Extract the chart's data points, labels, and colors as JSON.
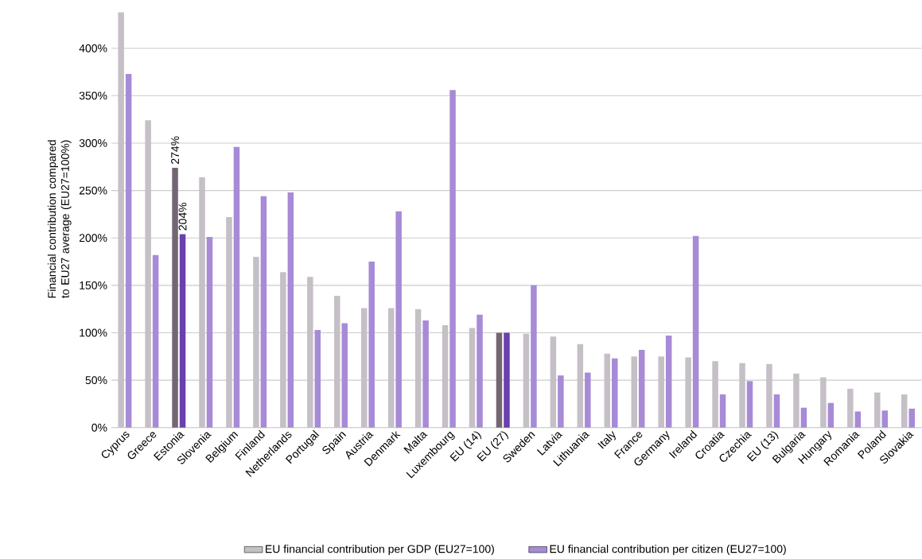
{
  "chart_data": {
    "type": "bar",
    "ylabel": "Financial contribution compared to EU27 average (EU27=100%)",
    "categories": [
      "Cyprus",
      "Greece",
      "Estonia",
      "Slovenia",
      "Belgium",
      "Finland",
      "Netherlands",
      "Portugal",
      "Spain",
      "Austria",
      "Denmark",
      "Malta",
      "Luxembourg",
      "EU (14)",
      "EU (27)",
      "Sweden",
      "Latvia",
      "Lithuania",
      "Italy",
      "France",
      "Germany",
      "Ireland",
      "Croatia",
      "Czechia",
      "EU (13)",
      "Bulgaria",
      "Hungary",
      "Romania",
      "Poland",
      "Slovakia"
    ],
    "series": [
      {
        "name": "EU financial contribution per GDP (EU27=100)",
        "color": "#c5bfc6",
        "colors": [
          "#c5bfc6",
          "#c5bfc6",
          "#736673",
          "#c5bfc6",
          "#c5bfc6",
          "#c5bfc6",
          "#c5bfc6",
          "#c5bfc6",
          "#c5bfc6",
          "#c5bfc6",
          "#c5bfc6",
          "#c5bfc6",
          "#c5bfc6",
          "#c5bfc6",
          "#736673",
          "#c5bfc6",
          "#c5bfc6",
          "#c5bfc6",
          "#c5bfc6",
          "#c5bfc6",
          "#c5bfc6",
          "#c5bfc6",
          "#c5bfc6",
          "#c5bfc6",
          "#c5bfc6",
          "#c5bfc6",
          "#c5bfc6",
          "#c5bfc6",
          "#c5bfc6",
          "#c5bfc6"
        ],
        "values": [
          438,
          324,
          274,
          264,
          222,
          180,
          164,
          159,
          139,
          126,
          126,
          125,
          108,
          105,
          100,
          99,
          96,
          88,
          78,
          75,
          75,
          74,
          70,
          68,
          67,
          57,
          53,
          41,
          37,
          35
        ],
        "value_labels": [
          null,
          null,
          "274%",
          null,
          null,
          null,
          null,
          null,
          null,
          null,
          null,
          null,
          null,
          null,
          null,
          null,
          null,
          null,
          null,
          null,
          null,
          null,
          null,
          null,
          null,
          null,
          null,
          null,
          null,
          null
        ]
      },
      {
        "name": "EU financial contribution per citizen (EU27=100)",
        "color": "#a78bd6",
        "colors": [
          "#a78bd6",
          "#a78bd6",
          "#6a3fae",
          "#a78bd6",
          "#a78bd6",
          "#a78bd6",
          "#a78bd6",
          "#a78bd6",
          "#a78bd6",
          "#a78bd6",
          "#a78bd6",
          "#a78bd6",
          "#a78bd6",
          "#a78bd6",
          "#6a3fae",
          "#a78bd6",
          "#a78bd6",
          "#a78bd6",
          "#a78bd6",
          "#a78bd6",
          "#a78bd6",
          "#a78bd6",
          "#a78bd6",
          "#a78bd6",
          "#a78bd6",
          "#a78bd6",
          "#a78bd6",
          "#a78bd6",
          "#a78bd6",
          "#a78bd6"
        ],
        "values": [
          373,
          182,
          204,
          201,
          296,
          244,
          248,
          103,
          110,
          175,
          228,
          113,
          356,
          119,
          100,
          150,
          55,
          58,
          73,
          82,
          97,
          202,
          35,
          49,
          35,
          21,
          26,
          17,
          18,
          20
        ],
        "value_labels": [
          null,
          null,
          "204%",
          null,
          null,
          null,
          null,
          null,
          null,
          null,
          null,
          null,
          null,
          null,
          null,
          null,
          null,
          null,
          null,
          null,
          null,
          null,
          null,
          null,
          null,
          null,
          null,
          null,
          null,
          null
        ]
      }
    ],
    "ylim": [
      0,
      440
    ],
    "yticks": [
      {
        "value": 0,
        "label": "0%"
      },
      {
        "value": 50,
        "label": "50%"
      },
      {
        "value": 100,
        "label": "100%"
      },
      {
        "value": 150,
        "label": "150%"
      },
      {
        "value": 200,
        "label": "200%"
      },
      {
        "value": 250,
        "label": "250%"
      },
      {
        "value": 300,
        "label": "300%"
      },
      {
        "value": 350,
        "label": "350%"
      },
      {
        "value": 400,
        "label": "400%"
      }
    ],
    "grid": "y",
    "legend": "bottom"
  }
}
